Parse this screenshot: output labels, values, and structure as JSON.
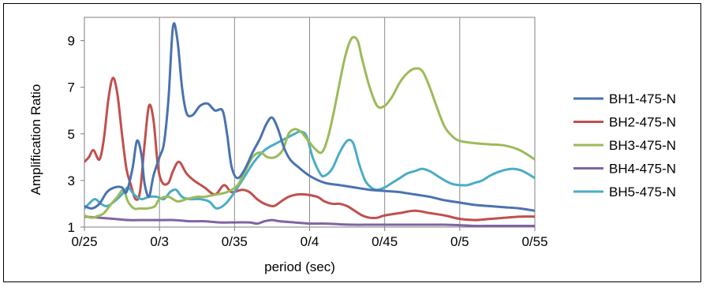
{
  "chart_data": {
    "type": "line",
    "title": "",
    "xlabel": "period (sec)",
    "ylabel": "Amplification Ratio",
    "xlim": [
      0.25,
      0.55
    ],
    "ylim": [
      1,
      10
    ],
    "x_ticks": [
      {
        "value": 0.25,
        "label": "0/25"
      },
      {
        "value": 0.3,
        "label": "0/3"
      },
      {
        "value": 0.35,
        "label": "0/35"
      },
      {
        "value": 0.4,
        "label": "0/4"
      },
      {
        "value": 0.45,
        "label": "0/45"
      },
      {
        "value": 0.5,
        "label": "0/5"
      },
      {
        "value": 0.55,
        "label": "0/55"
      }
    ],
    "y_ticks": [
      {
        "value": 1,
        "label": "1"
      },
      {
        "value": 3,
        "label": "3"
      },
      {
        "value": 5,
        "label": "5"
      },
      {
        "value": 7,
        "label": "7"
      },
      {
        "value": 9,
        "label": "9"
      }
    ],
    "grid": "vertical",
    "legend_position": "right",
    "series": [
      {
        "name": "BH1-475-N",
        "color": "#4a72b0",
        "points": [
          [
            0.25,
            1.9
          ],
          [
            0.255,
            1.8
          ],
          [
            0.26,
            2.0
          ],
          [
            0.265,
            2.5
          ],
          [
            0.27,
            2.7
          ],
          [
            0.275,
            2.7
          ],
          [
            0.278,
            2.5
          ],
          [
            0.282,
            3.5
          ],
          [
            0.285,
            4.7
          ],
          [
            0.288,
            4.1
          ],
          [
            0.29,
            2.9
          ],
          [
            0.293,
            2.3
          ],
          [
            0.296,
            3.2
          ],
          [
            0.3,
            4.0
          ],
          [
            0.303,
            4.6
          ],
          [
            0.306,
            6.5
          ],
          [
            0.309,
            9.6
          ],
          [
            0.312,
            9.0
          ],
          [
            0.315,
            7.0
          ],
          [
            0.318,
            5.9
          ],
          [
            0.322,
            5.8
          ],
          [
            0.327,
            6.2
          ],
          [
            0.332,
            6.3
          ],
          [
            0.337,
            6.0
          ],
          [
            0.342,
            6.0
          ],
          [
            0.345,
            5.0
          ],
          [
            0.348,
            3.6
          ],
          [
            0.352,
            3.1
          ],
          [
            0.357,
            3.5
          ],
          [
            0.362,
            4.2
          ],
          [
            0.367,
            4.8
          ],
          [
            0.371,
            5.4
          ],
          [
            0.375,
            5.7
          ],
          [
            0.379,
            5.2
          ],
          [
            0.383,
            4.4
          ],
          [
            0.387,
            3.9
          ],
          [
            0.392,
            3.6
          ],
          [
            0.4,
            3.2
          ],
          [
            0.41,
            2.9
          ],
          [
            0.42,
            2.8
          ],
          [
            0.43,
            2.7
          ],
          [
            0.44,
            2.6
          ],
          [
            0.45,
            2.55
          ],
          [
            0.46,
            2.5
          ],
          [
            0.47,
            2.4
          ],
          [
            0.48,
            2.3
          ],
          [
            0.49,
            2.15
          ],
          [
            0.5,
            2.05
          ],
          [
            0.51,
            1.95
          ],
          [
            0.52,
            1.9
          ],
          [
            0.53,
            1.85
          ],
          [
            0.54,
            1.8
          ],
          [
            0.55,
            1.7
          ]
        ]
      },
      {
        "name": "BH2-475-N",
        "color": "#c0504d",
        "points": [
          [
            0.25,
            3.8
          ],
          [
            0.253,
            4.0
          ],
          [
            0.256,
            4.3
          ],
          [
            0.26,
            3.9
          ],
          [
            0.263,
            4.8
          ],
          [
            0.266,
            6.5
          ],
          [
            0.269,
            7.4
          ],
          [
            0.272,
            6.7
          ],
          [
            0.275,
            5.0
          ],
          [
            0.278,
            3.5
          ],
          [
            0.281,
            2.8
          ],
          [
            0.284,
            2.2
          ],
          [
            0.287,
            2.5
          ],
          [
            0.29,
            4.5
          ],
          [
            0.293,
            6.2
          ],
          [
            0.296,
            5.6
          ],
          [
            0.299,
            3.6
          ],
          [
            0.302,
            2.9
          ],
          [
            0.306,
            2.9
          ],
          [
            0.309,
            3.4
          ],
          [
            0.313,
            3.8
          ],
          [
            0.318,
            3.3
          ],
          [
            0.323,
            3.0
          ],
          [
            0.33,
            2.7
          ],
          [
            0.337,
            2.4
          ],
          [
            0.343,
            2.8
          ],
          [
            0.348,
            2.5
          ],
          [
            0.355,
            2.6
          ],
          [
            0.36,
            2.5
          ],
          [
            0.365,
            2.2
          ],
          [
            0.37,
            2.0
          ],
          [
            0.376,
            1.9
          ],
          [
            0.381,
            2.1
          ],
          [
            0.386,
            2.3
          ],
          [
            0.392,
            2.4
          ],
          [
            0.397,
            2.4
          ],
          [
            0.405,
            2.3
          ],
          [
            0.41,
            2.1
          ],
          [
            0.415,
            2.0
          ],
          [
            0.42,
            2.0
          ],
          [
            0.425,
            1.9
          ],
          [
            0.43,
            1.7
          ],
          [
            0.435,
            1.5
          ],
          [
            0.44,
            1.4
          ],
          [
            0.445,
            1.4
          ],
          [
            0.45,
            1.5
          ],
          [
            0.46,
            1.6
          ],
          [
            0.47,
            1.7
          ],
          [
            0.48,
            1.6
          ],
          [
            0.49,
            1.5
          ],
          [
            0.5,
            1.35
          ],
          [
            0.51,
            1.3
          ],
          [
            0.52,
            1.35
          ],
          [
            0.53,
            1.4
          ],
          [
            0.54,
            1.45
          ],
          [
            0.55,
            1.45
          ]
        ]
      },
      {
        "name": "BH3-475-N",
        "color": "#9bbb59",
        "points": [
          [
            0.25,
            1.5
          ],
          [
            0.255,
            1.4
          ],
          [
            0.26,
            1.5
          ],
          [
            0.263,
            1.6
          ],
          [
            0.268,
            2.0
          ],
          [
            0.272,
            2.3
          ],
          [
            0.276,
            2.6
          ],
          [
            0.279,
            2.1
          ],
          [
            0.283,
            1.8
          ],
          [
            0.287,
            1.8
          ],
          [
            0.292,
            1.8
          ],
          [
            0.297,
            1.9
          ],
          [
            0.3,
            2.2
          ],
          [
            0.306,
            2.3
          ],
          [
            0.312,
            2.1
          ],
          [
            0.318,
            2.2
          ],
          [
            0.325,
            2.3
          ],
          [
            0.33,
            2.3
          ],
          [
            0.338,
            2.4
          ],
          [
            0.345,
            2.5
          ],
          [
            0.352,
            2.8
          ],
          [
            0.357,
            3.4
          ],
          [
            0.362,
            4.0
          ],
          [
            0.367,
            4.2
          ],
          [
            0.372,
            4.0
          ],
          [
            0.377,
            4.0
          ],
          [
            0.382,
            4.3
          ],
          [
            0.386,
            5.0
          ],
          [
            0.39,
            5.2
          ],
          [
            0.394,
            5.1
          ],
          [
            0.398,
            4.8
          ],
          [
            0.403,
            4.4
          ],
          [
            0.408,
            4.2
          ],
          [
            0.412,
            4.8
          ],
          [
            0.416,
            5.9
          ],
          [
            0.42,
            7.2
          ],
          [
            0.424,
            8.4
          ],
          [
            0.428,
            9.1
          ],
          [
            0.432,
            9.0
          ],
          [
            0.435,
            8.2
          ],
          [
            0.44,
            7.0
          ],
          [
            0.445,
            6.2
          ],
          [
            0.45,
            6.2
          ],
          [
            0.455,
            6.6
          ],
          [
            0.46,
            7.2
          ],
          [
            0.465,
            7.6
          ],
          [
            0.47,
            7.8
          ],
          [
            0.475,
            7.7
          ],
          [
            0.48,
            7.0
          ],
          [
            0.485,
            6.1
          ],
          [
            0.49,
            5.3
          ],
          [
            0.495,
            4.9
          ],
          [
            0.5,
            4.7
          ],
          [
            0.51,
            4.6
          ],
          [
            0.52,
            4.55
          ],
          [
            0.53,
            4.5
          ],
          [
            0.54,
            4.3
          ],
          [
            0.55,
            3.9
          ]
        ]
      },
      {
        "name": "BH4-475-N",
        "color": "#8064a2",
        "points": [
          [
            0.25,
            1.45
          ],
          [
            0.26,
            1.4
          ],
          [
            0.27,
            1.35
          ],
          [
            0.28,
            1.3
          ],
          [
            0.29,
            1.3
          ],
          [
            0.3,
            1.3
          ],
          [
            0.31,
            1.3
          ],
          [
            0.32,
            1.25
          ],
          [
            0.33,
            1.25
          ],
          [
            0.34,
            1.2
          ],
          [
            0.35,
            1.2
          ],
          [
            0.36,
            1.2
          ],
          [
            0.365,
            1.15
          ],
          [
            0.37,
            1.25
          ],
          [
            0.375,
            1.3
          ],
          [
            0.38,
            1.25
          ],
          [
            0.39,
            1.2
          ],
          [
            0.4,
            1.15
          ],
          [
            0.41,
            1.15
          ],
          [
            0.42,
            1.12
          ],
          [
            0.43,
            1.1
          ],
          [
            0.44,
            1.1
          ],
          [
            0.45,
            1.1
          ],
          [
            0.46,
            1.1
          ],
          [
            0.47,
            1.1
          ],
          [
            0.48,
            1.1
          ],
          [
            0.49,
            1.1
          ],
          [
            0.5,
            1.08
          ],
          [
            0.51,
            1.05
          ],
          [
            0.52,
            1.05
          ],
          [
            0.53,
            1.05
          ],
          [
            0.54,
            1.05
          ],
          [
            0.55,
            1.05
          ]
        ]
      },
      {
        "name": "BH5-475-N",
        "color": "#4bacc6",
        "points": [
          [
            0.25,
            1.8
          ],
          [
            0.253,
            2.0
          ],
          [
            0.257,
            2.2
          ],
          [
            0.261,
            2.0
          ],
          [
            0.265,
            1.9
          ],
          [
            0.27,
            2.1
          ],
          [
            0.275,
            2.4
          ],
          [
            0.279,
            2.7
          ],
          [
            0.283,
            2.4
          ],
          [
            0.288,
            2.2
          ],
          [
            0.293,
            2.3
          ],
          [
            0.298,
            2.3
          ],
          [
            0.303,
            2.2
          ],
          [
            0.307,
            2.5
          ],
          [
            0.311,
            2.6
          ],
          [
            0.315,
            2.3
          ],
          [
            0.32,
            2.2
          ],
          [
            0.327,
            2.2
          ],
          [
            0.333,
            2.1
          ],
          [
            0.338,
            1.8
          ],
          [
            0.344,
            2.0
          ],
          [
            0.35,
            2.5
          ],
          [
            0.357,
            3.2
          ],
          [
            0.363,
            3.8
          ],
          [
            0.37,
            4.3
          ],
          [
            0.378,
            4.6
          ],
          [
            0.384,
            4.8
          ],
          [
            0.39,
            5.0
          ],
          [
            0.394,
            5.1
          ],
          [
            0.398,
            4.9
          ],
          [
            0.402,
            4.0
          ],
          [
            0.407,
            3.3
          ],
          [
            0.41,
            3.2
          ],
          [
            0.415,
            3.5
          ],
          [
            0.42,
            4.2
          ],
          [
            0.425,
            4.7
          ],
          [
            0.429,
            4.6
          ],
          [
            0.433,
            3.7
          ],
          [
            0.437,
            3.0
          ],
          [
            0.441,
            2.7
          ],
          [
            0.445,
            2.6
          ],
          [
            0.45,
            2.7
          ],
          [
            0.455,
            2.9
          ],
          [
            0.46,
            3.1
          ],
          [
            0.465,
            3.3
          ],
          [
            0.47,
            3.4
          ],
          [
            0.475,
            3.5
          ],
          [
            0.48,
            3.4
          ],
          [
            0.485,
            3.2
          ],
          [
            0.49,
            3.0
          ],
          [
            0.495,
            2.85
          ],
          [
            0.5,
            2.8
          ],
          [
            0.505,
            2.8
          ],
          [
            0.51,
            2.9
          ],
          [
            0.515,
            3.0
          ],
          [
            0.52,
            3.2
          ],
          [
            0.525,
            3.35
          ],
          [
            0.53,
            3.45
          ],
          [
            0.535,
            3.5
          ],
          [
            0.54,
            3.45
          ],
          [
            0.545,
            3.3
          ],
          [
            0.55,
            3.1
          ]
        ]
      }
    ]
  }
}
